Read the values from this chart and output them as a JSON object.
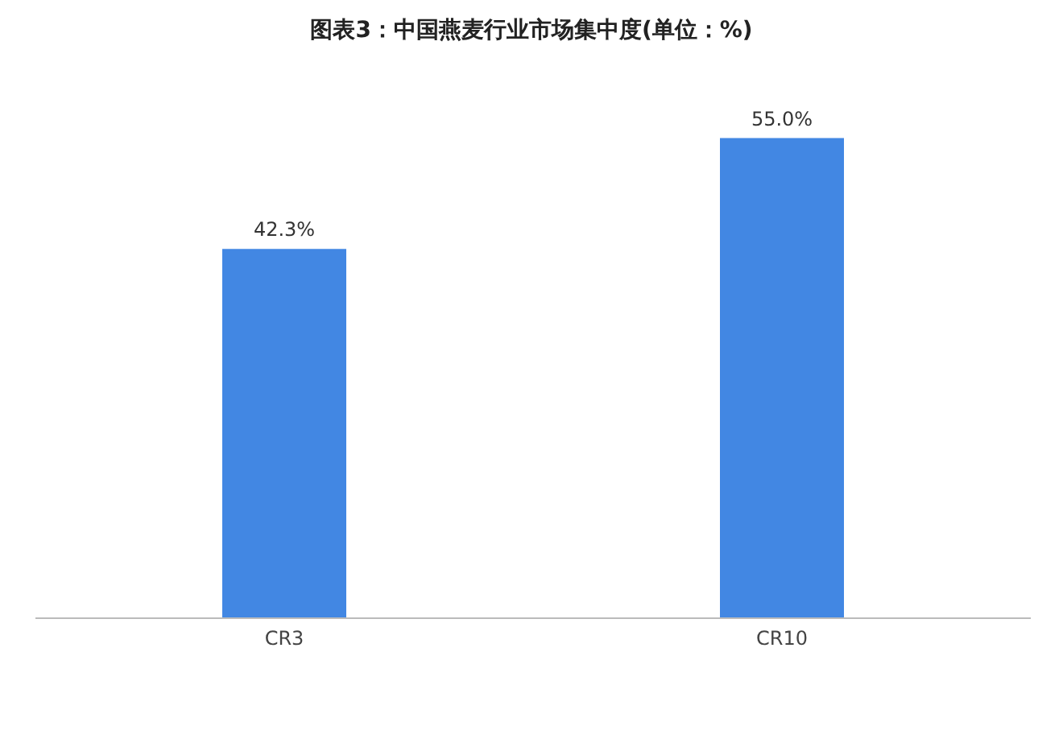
{
  "chart_data": {
    "type": "bar",
    "title": "图表3：中国燕麦行业市场集中度(单位：%)",
    "categories": [
      "CR3",
      "CR10"
    ],
    "values": [
      42.3,
      55.0
    ],
    "color": "#4287e3",
    "value_labels": [
      "42.3%",
      "55.0%"
    ],
    "grid": false,
    "legend": false
  }
}
